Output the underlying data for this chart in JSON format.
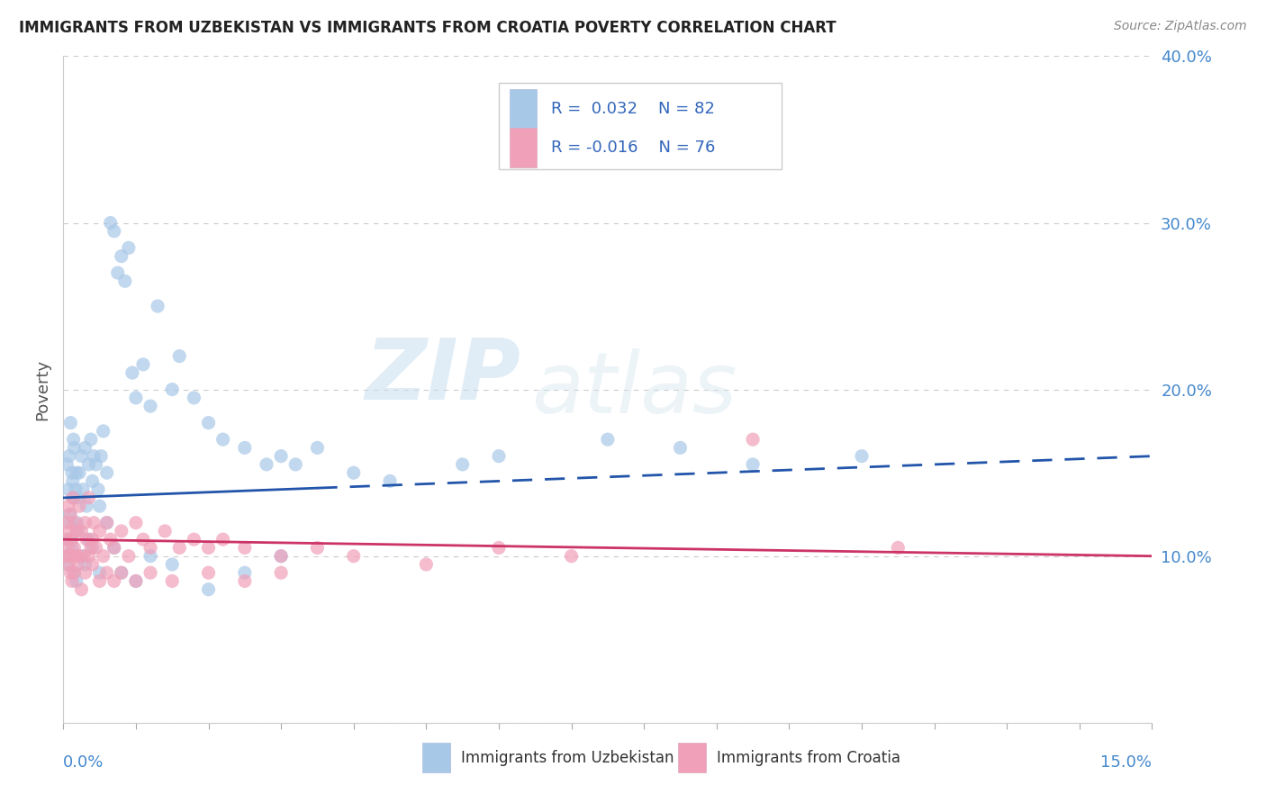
{
  "title": "IMMIGRANTS FROM UZBEKISTAN VS IMMIGRANTS FROM CROATIA POVERTY CORRELATION CHART",
  "source": "Source: ZipAtlas.com",
  "ylabel": "Poverty",
  "xlim": [
    0,
    15
  ],
  "ylim": [
    0,
    40
  ],
  "series1_color": "#a8c8e8",
  "series1_line_color": "#2255aa",
  "series2_color": "#f0a0b8",
  "series2_line_color": "#cc3366",
  "series1_label": "Immigrants from Uzbekistan",
  "series2_label": "Immigrants from Croatia",
  "legend_R1": "R =  0.032",
  "legend_N1": "N = 82",
  "legend_R2": "R = -0.016",
  "legend_N2": "N = 76",
  "watermark_zip": "ZIP",
  "watermark_atlas": "atlas",
  "ytick_color": "#4488cc",
  "grid_color": "#cccccc",
  "title_color": "#222222",
  "source_color": "#888888",
  "ylabel_color": "#555555",
  "xlabel_color": "#4488cc",
  "legend_text_color": "#3366bb"
}
